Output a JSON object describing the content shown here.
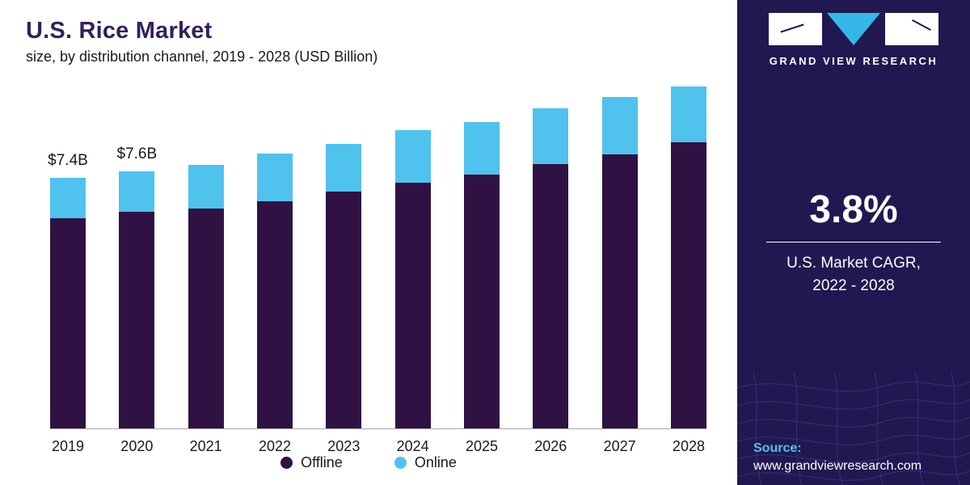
{
  "header": {
    "title": "U.S. Rice Market",
    "subtitle": "size, by distribution channel, 2019 - 2028 (USD Billion)"
  },
  "chart_data": {
    "type": "bar",
    "stacked": true,
    "title": "U.S. Rice Market size, by distribution channel, 2019 - 2028 (USD Billion)",
    "categories": [
      "2019",
      "2020",
      "2021",
      "2022",
      "2023",
      "2024",
      "2025",
      "2026",
      "2027",
      "2028"
    ],
    "series": [
      {
        "name": "Offline",
        "color": "#2f1243",
        "values": [
          6.2,
          6.4,
          6.5,
          6.7,
          7.0,
          7.25,
          7.5,
          7.8,
          8.1,
          8.45
        ]
      },
      {
        "name": "Online",
        "color": "#4fc2ee",
        "values": [
          1.2,
          1.2,
          1.3,
          1.4,
          1.4,
          1.55,
          1.55,
          1.65,
          1.7,
          1.65
        ]
      }
    ],
    "totals_annotations": [
      {
        "category": "2019",
        "text": "$7.4B"
      },
      {
        "category": "2020",
        "text": "$7.6B"
      }
    ],
    "xlabel": "",
    "ylabel": "USD Billion",
    "ylim": [
      0,
      10.5
    ],
    "grid": false,
    "legend_position": "bottom"
  },
  "sidebar": {
    "brand": "GRAND VIEW RESEARCH",
    "cagr_value": "3.8%",
    "cagr_label_line1": "U.S. Market CAGR,",
    "cagr_label_line2": "2022 - 2028",
    "source_label": "Source:",
    "source_url": "www.grandviewresearch.com"
  }
}
